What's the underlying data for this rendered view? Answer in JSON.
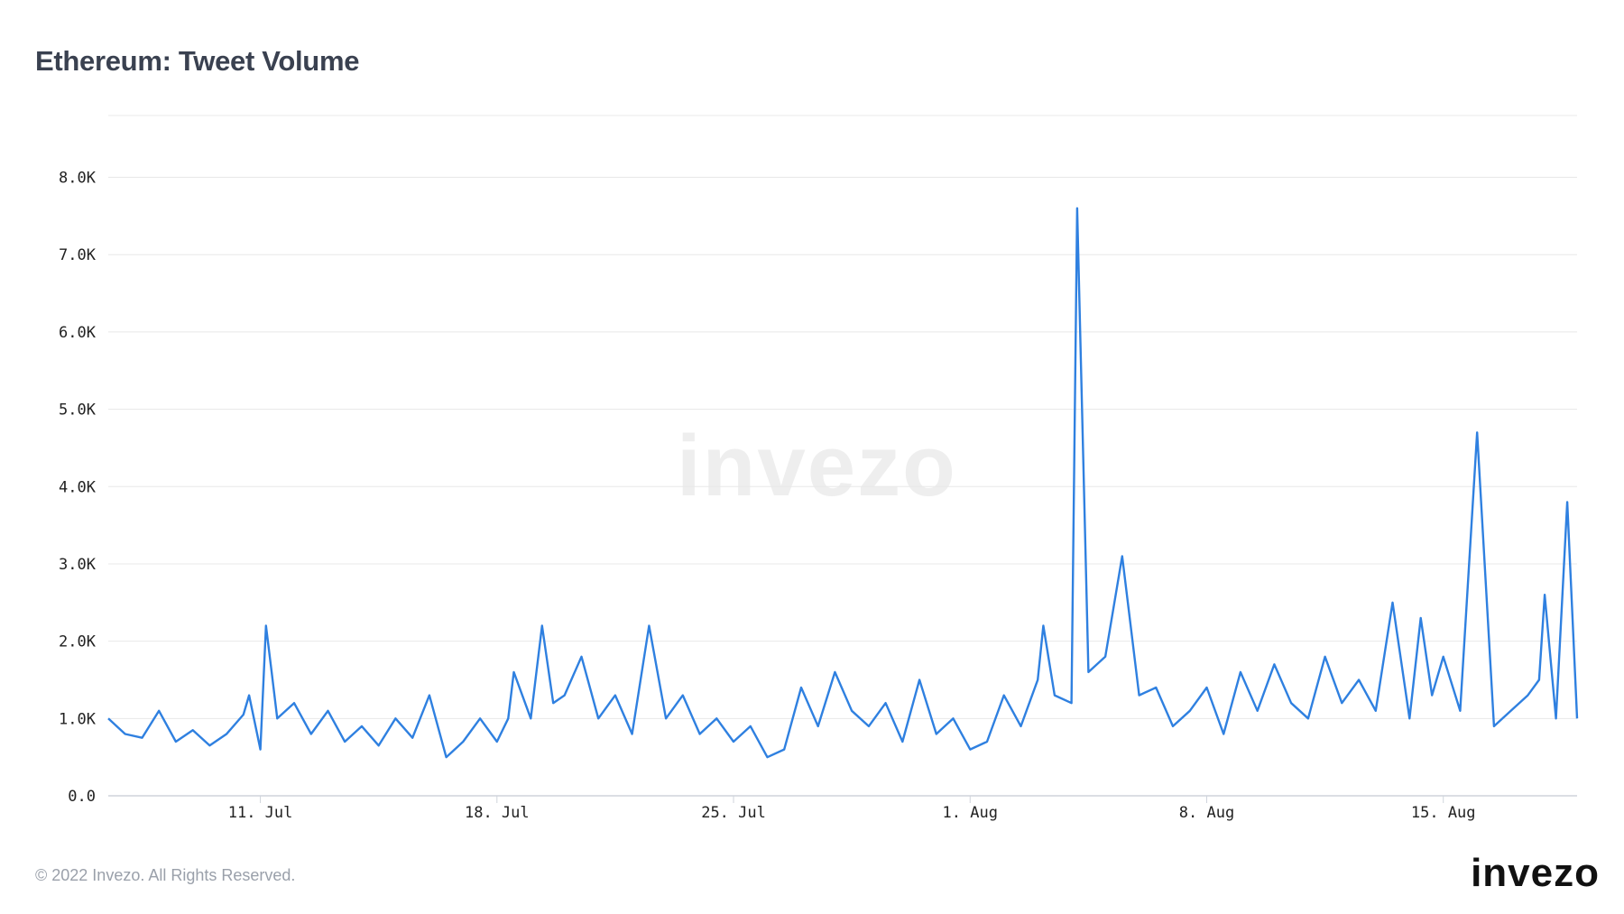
{
  "title": "Ethereum: Tweet Volume",
  "footer": "© 2022 Invezo. All Rights Reserved.",
  "logo": "invezo",
  "watermark": "invezo",
  "colors": {
    "line": "#2f80e0",
    "grid": "#e8e8e8",
    "axis": "#222222",
    "title": "#3a4150"
  },
  "chart_data": {
    "type": "line",
    "title": "Ethereum: Tweet Volume",
    "xlabel": "",
    "ylabel": "",
    "ylim": [
      0,
      8800
    ],
    "xlim": [
      "2022-07-06T12:00",
      "2022-08-18T23:00"
    ],
    "grid": true,
    "legend": "none",
    "y_ticks": [
      0,
      1000,
      2000,
      3000,
      4000,
      5000,
      6000,
      7000,
      8000
    ],
    "y_tick_labels": [
      "0.0",
      "1.0K",
      "2.0K",
      "3.0K",
      "4.0K",
      "5.0K",
      "6.0K",
      "7.0K",
      "8.0K"
    ],
    "x_ticks": [
      "2022-07-11",
      "2022-07-18",
      "2022-07-25",
      "2022-08-01",
      "2022-08-08",
      "2022-08-15"
    ],
    "x_tick_labels": [
      "11. Jul",
      "18. Jul",
      "25. Jul",
      "1. Aug",
      "8. Aug",
      "15. Aug"
    ],
    "series": [
      {
        "x": [
          "2022-07-06T12:00",
          "2022-07-07T00:00",
          "2022-07-07T12:00",
          "2022-07-08T00:00",
          "2022-07-08T12:00",
          "2022-07-09T00:00",
          "2022-07-09T12:00",
          "2022-07-10T00:00",
          "2022-07-10T12:00",
          "2022-07-10T16:00",
          "2022-07-11T00:00",
          "2022-07-11T04:00",
          "2022-07-11T08:00",
          "2022-07-11T12:00",
          "2022-07-12T00:00",
          "2022-07-12T12:00",
          "2022-07-13T00:00",
          "2022-07-13T12:00",
          "2022-07-14T00:00",
          "2022-07-14T12:00",
          "2022-07-15T00:00",
          "2022-07-15T12:00",
          "2022-07-16T00:00",
          "2022-07-16T12:00",
          "2022-07-17T00:00",
          "2022-07-17T12:00",
          "2022-07-18T00:00",
          "2022-07-18T08:00",
          "2022-07-18T12:00",
          "2022-07-19T00:00",
          "2022-07-19T08:00",
          "2022-07-19T16:00",
          "2022-07-20T00:00",
          "2022-07-20T12:00",
          "2022-07-21T00:00",
          "2022-07-21T12:00",
          "2022-07-22T00:00",
          "2022-07-22T12:00",
          "2022-07-23T00:00",
          "2022-07-23T12:00",
          "2022-07-24T00:00",
          "2022-07-24T12:00",
          "2022-07-25T00:00",
          "2022-07-25T12:00",
          "2022-07-26T00:00",
          "2022-07-26T12:00",
          "2022-07-27T00:00",
          "2022-07-27T12:00",
          "2022-07-28T00:00",
          "2022-07-28T12:00",
          "2022-07-29T00:00",
          "2022-07-29T12:00",
          "2022-07-30T00:00",
          "2022-07-30T12:00",
          "2022-07-31T00:00",
          "2022-07-31T12:00",
          "2022-08-01T00:00",
          "2022-08-01T12:00",
          "2022-08-02T00:00",
          "2022-08-02T12:00",
          "2022-08-03T00:00",
          "2022-08-03T04:00",
          "2022-08-03T12:00",
          "2022-08-04T00:00",
          "2022-08-04T04:00",
          "2022-08-04T12:00",
          "2022-08-05T00:00",
          "2022-08-05T12:00",
          "2022-08-06T00:00",
          "2022-08-06T12:00",
          "2022-08-07T00:00",
          "2022-08-07T12:00",
          "2022-08-08T00:00",
          "2022-08-08T12:00",
          "2022-08-09T00:00",
          "2022-08-09T12:00",
          "2022-08-10T00:00",
          "2022-08-10T12:00",
          "2022-08-11T00:00",
          "2022-08-11T12:00",
          "2022-08-12T00:00",
          "2022-08-12T12:00",
          "2022-08-13T00:00",
          "2022-08-13T12:00",
          "2022-08-14T00:00",
          "2022-08-14T08:00",
          "2022-08-14T16:00",
          "2022-08-15T00:00",
          "2022-08-15T12:00",
          "2022-08-16T00:00",
          "2022-08-16T12:00",
          "2022-08-17T00:00",
          "2022-08-17T12:00",
          "2022-08-17T20:00",
          "2022-08-18T00:00",
          "2022-08-18T08:00",
          "2022-08-18T16:00",
          "2022-08-18T23:00"
        ],
        "values": [
          1000,
          800,
          750,
          1100,
          700,
          850,
          650,
          800,
          1050,
          1300,
          600,
          2200,
          1600,
          1000,
          1200,
          800,
          1100,
          700,
          900,
          650,
          1000,
          750,
          1300,
          500,
          700,
          1000,
          700,
          1000,
          1600,
          1000,
          2200,
          1200,
          1300,
          1800,
          1000,
          1300,
          800,
          2200,
          1000,
          1300,
          800,
          1000,
          700,
          900,
          500,
          600,
          1400,
          900,
          1600,
          1100,
          900,
          1200,
          700,
          1500,
          800,
          1000,
          600,
          700,
          1300,
          900,
          1500,
          2200,
          1300,
          1200,
          7600,
          1600,
          1800,
          3100,
          1300,
          1400,
          900,
          1100,
          1400,
          800,
          1600,
          1100,
          1700,
          1200,
          1000,
          1800,
          1200,
          1500,
          1100,
          2500,
          1000,
          2300,
          1300,
          1800,
          1100,
          4700,
          900,
          1100,
          1300,
          1500,
          2600,
          1000,
          3800,
          1000
        ]
      }
    ]
  }
}
